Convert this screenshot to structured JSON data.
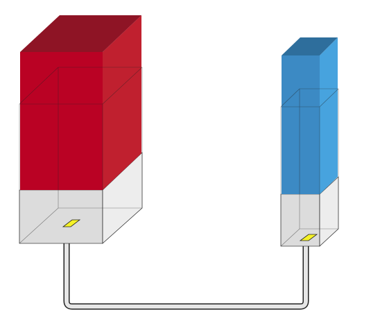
{
  "diagram": {
    "left_column": {
      "fill": {
        "front": "#BA0224",
        "side": "#C0202F",
        "top": "#8E1425"
      },
      "container": {
        "front": "#DCDCDC",
        "side": "#EDEDED"
      }
    },
    "right_column": {
      "fill": {
        "front": "#3C8AC4",
        "side": "#47A3DE",
        "top": "#2E6E9C"
      },
      "container": {
        "front": "#DCDCDC",
        "side": "#EDEDED"
      }
    },
    "valve_color": "#F5F227",
    "tube_color": "#E6E6E6",
    "edge_color": "#222222"
  }
}
